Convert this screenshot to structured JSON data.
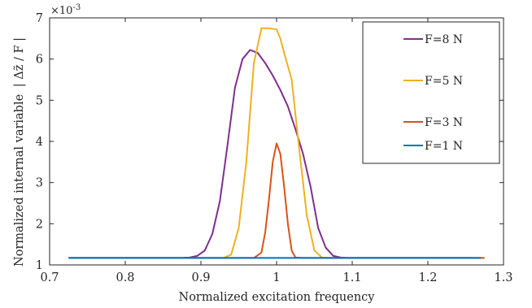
{
  "chart_data": {
    "type": "line",
    "xlabel": "Normalized excitation frequency",
    "ylabel": "Normalized internal variable",
    "ylabel_math": "| Δz̃ / F |",
    "y_exponent": "×10",
    "y_exponent_power": "-3",
    "xlim": [
      0.7,
      1.3
    ],
    "ylim": [
      1,
      7
    ],
    "x_ticks": [
      0.7,
      0.8,
      0.9,
      1.0,
      1.1,
      1.2,
      1.3
    ],
    "x_tick_labels": [
      "0.7",
      "0.8",
      "0.9",
      "1",
      "1.1",
      "1.2",
      "1.3"
    ],
    "y_ticks": [
      1,
      2,
      3,
      4,
      5,
      6,
      7
    ],
    "y_tick_labels": [
      "1",
      "2",
      "3",
      "4",
      "5",
      "6",
      "7"
    ],
    "legend_position": "top-right",
    "series": [
      {
        "name": "F=8 N",
        "color": "#7E2F8E",
        "x": [
          0.725,
          0.85,
          0.875,
          0.885,
          0.895,
          0.905,
          0.915,
          0.925,
          0.935,
          0.945,
          0.955,
          0.965,
          0.975,
          0.985,
          0.995,
          1.005,
          1.015,
          1.025,
          1.035,
          1.045,
          1.055,
          1.065,
          1.075,
          1.085,
          1.095,
          1.26
        ],
        "y": [
          1.17,
          1.17,
          1.17,
          1.18,
          1.22,
          1.35,
          1.75,
          2.55,
          3.9,
          5.3,
          6.0,
          6.22,
          6.15,
          5.9,
          5.6,
          5.25,
          4.85,
          4.3,
          3.7,
          2.9,
          1.9,
          1.42,
          1.22,
          1.18,
          1.17,
          1.17
        ]
      },
      {
        "name": "F=5 N",
        "color": "#EDB120",
        "x": [
          0.725,
          0.93,
          0.94,
          0.95,
          0.96,
          0.97,
          0.98,
          0.99,
          1.0,
          1.005,
          1.01,
          1.02,
          1.03,
          1.04,
          1.05,
          1.06,
          1.07,
          1.275
        ],
        "y": [
          1.17,
          1.17,
          1.25,
          1.9,
          3.5,
          5.9,
          6.75,
          6.75,
          6.72,
          6.5,
          6.15,
          5.5,
          3.8,
          2.2,
          1.35,
          1.18,
          1.17,
          1.17
        ]
      },
      {
        "name": "F=3 N",
        "color": "#D95319",
        "x": [
          0.725,
          0.97,
          0.98,
          0.985,
          0.99,
          0.995,
          1.0,
          1.005,
          1.01,
          1.015,
          1.02,
          1.025,
          1.035,
          1.275
        ],
        "y": [
          1.17,
          1.17,
          1.3,
          1.8,
          2.6,
          3.5,
          3.95,
          3.7,
          2.9,
          2.0,
          1.35,
          1.18,
          1.17,
          1.17
        ]
      },
      {
        "name": "F=1 N",
        "color": "#0072BD",
        "x": [
          0.725,
          1.27
        ],
        "y": [
          1.17,
          1.17
        ]
      }
    ]
  }
}
